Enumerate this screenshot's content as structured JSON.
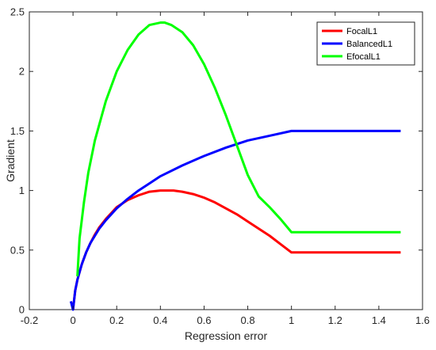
{
  "chart_data": {
    "type": "line",
    "title": "",
    "xlabel": "Regression error",
    "ylabel": "Gradient",
    "xlim": [
      -0.2,
      1.6
    ],
    "ylim": [
      0,
      2.5
    ],
    "xticks": [
      -0.2,
      0,
      0.2,
      0.4,
      0.6,
      0.8,
      1,
      1.2,
      1.4,
      1.6
    ],
    "xtick_labels": [
      "-0.2",
      "0",
      "0.2",
      "0.4",
      "0.6",
      "0.8",
      "1",
      "1.2",
      "1.4",
      "1.6"
    ],
    "yticks": [
      0,
      0.5,
      1,
      1.5,
      2,
      2.5
    ],
    "ytick_labels": [
      "0",
      "0.5",
      "1",
      "1.5",
      "2",
      "2.5"
    ],
    "grid": false,
    "legend_position": "top-right",
    "series": [
      {
        "name": "FocalL1",
        "color": "#ff0000",
        "x": [
          0.0,
          0.01,
          0.02,
          0.04,
          0.06,
          0.08,
          0.1,
          0.12,
          0.15,
          0.2,
          0.25,
          0.3,
          0.35,
          0.4,
          0.46,
          0.5,
          0.55,
          0.6,
          0.65,
          0.7,
          0.75,
          0.8,
          0.85,
          0.9,
          0.95,
          1.0,
          1.5
        ],
        "y": [
          0.0,
          0.16,
          0.25,
          0.38,
          0.48,
          0.56,
          0.63,
          0.69,
          0.76,
          0.86,
          0.92,
          0.96,
          0.99,
          1.0,
          1.0,
          0.99,
          0.97,
          0.94,
          0.9,
          0.85,
          0.8,
          0.74,
          0.68,
          0.62,
          0.55,
          0.48,
          0.48
        ]
      },
      {
        "name": "BalancedL1",
        "color": "#0000ff",
        "x": [
          -0.01,
          0.0,
          0.01,
          0.02,
          0.04,
          0.06,
          0.08,
          0.1,
          0.12,
          0.15,
          0.2,
          0.25,
          0.3,
          0.35,
          0.4,
          0.5,
          0.6,
          0.7,
          0.8,
          0.9,
          1.0,
          1.5
        ],
        "y": [
          0.07,
          0.0,
          0.16,
          0.25,
          0.38,
          0.48,
          0.56,
          0.62,
          0.68,
          0.75,
          0.85,
          0.93,
          1.0,
          1.06,
          1.12,
          1.21,
          1.29,
          1.36,
          1.42,
          1.46,
          1.5,
          1.5
        ]
      },
      {
        "name": "EfocalL1",
        "color": "#00ff00",
        "x": [
          0.02,
          0.03,
          0.05,
          0.07,
          0.1,
          0.15,
          0.2,
          0.25,
          0.3,
          0.35,
          0.4,
          0.42,
          0.45,
          0.5,
          0.55,
          0.6,
          0.65,
          0.7,
          0.75,
          0.8,
          0.85,
          0.9,
          0.95,
          1.0,
          1.5
        ],
        "y": [
          0.28,
          0.6,
          0.9,
          1.15,
          1.42,
          1.75,
          2.0,
          2.18,
          2.31,
          2.39,
          2.41,
          2.41,
          2.39,
          2.33,
          2.22,
          2.06,
          1.86,
          1.63,
          1.38,
          1.13,
          0.95,
          0.86,
          0.76,
          0.65,
          0.65
        ]
      }
    ]
  }
}
